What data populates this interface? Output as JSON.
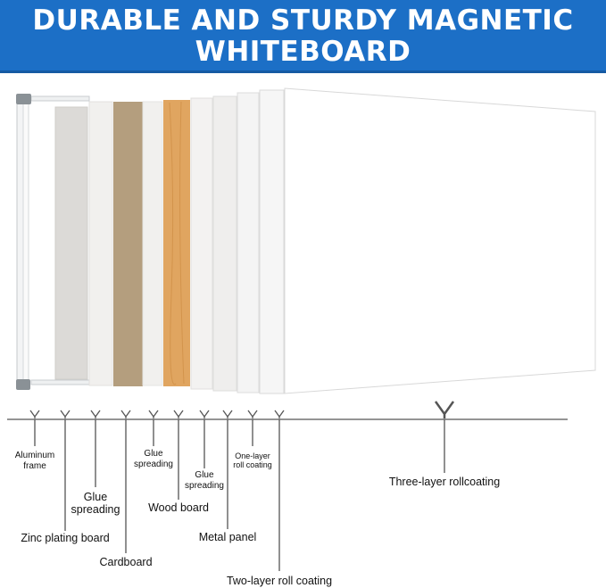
{
  "header": {
    "line1": "DURABLE AND STURDY MAGNETIC",
    "line2": "WHITEBOARD",
    "background": "#1c6fc6"
  },
  "layers": [
    {
      "label_line1": "Aluminum",
      "label_line2": "frame"
    },
    {
      "label_line1": "Zinc plating board"
    },
    {
      "label_line1": "Glue",
      "label_line2": "spreading"
    },
    {
      "label_line1": "Cardboard"
    },
    {
      "label_line1": "Glue",
      "label_line2": "spreading"
    },
    {
      "label_line1": "Wood board"
    },
    {
      "label_line1": "Glue",
      "label_line2": "spreading"
    },
    {
      "label_line1": "Metal panel"
    },
    {
      "label_line1": "One-layer",
      "label_line2": "roll coating"
    },
    {
      "label_line1": "Two-layer roll coating"
    },
    {
      "label_line1": "Three-layer rollcoating"
    }
  ],
  "colors": {
    "cardboard": "#b49e7e",
    "wood": "#e0a560",
    "frame_corner": "#8a9196"
  }
}
